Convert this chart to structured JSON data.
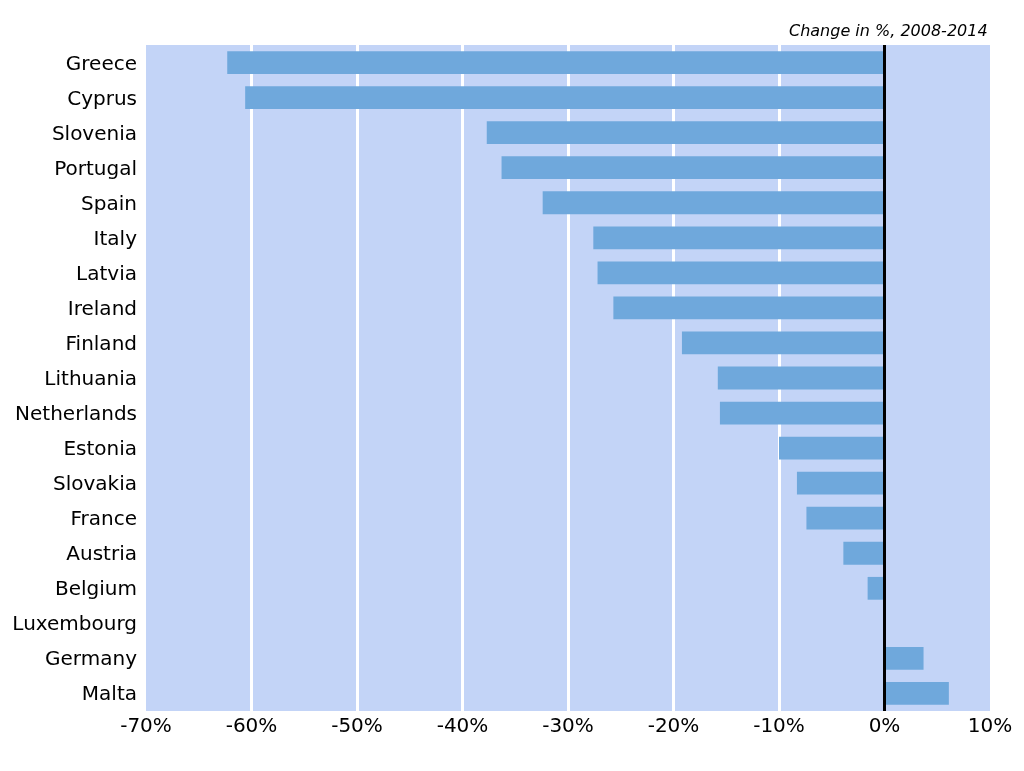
{
  "chart_data": {
    "type": "bar",
    "orientation": "horizontal",
    "annotations": [
      "Change in %, 2008-2014"
    ],
    "categories": [
      "Greece",
      "Cyprus",
      "Slovenia",
      "Portugal",
      "Spain",
      "Italy",
      "Latvia",
      "Ireland",
      "Finland",
      "Lithuania",
      "Netherlands",
      "Estonia",
      "Slovakia",
      "France",
      "Austria",
      "Belgium",
      "Luxembourg",
      "Germany",
      "Malta"
    ],
    "values": [
      -62.3,
      -60.6,
      -37.7,
      -36.3,
      -32.4,
      -27.6,
      -27.2,
      -25.7,
      -19.2,
      -15.8,
      -15.6,
      -10.0,
      -8.3,
      -7.4,
      -3.9,
      -1.6,
      null,
      3.7,
      6.1
    ],
    "color": "#6fa8dc",
    "xlim": [
      -70,
      10
    ],
    "xticks": [
      {
        "value": -70,
        "label": "-70%"
      },
      {
        "value": -60,
        "label": "-60%"
      },
      {
        "value": -50,
        "label": "-50%"
      },
      {
        "value": -40,
        "label": "-40%"
      },
      {
        "value": -30,
        "label": "-30%"
      },
      {
        "value": -20,
        "label": "-20%"
      },
      {
        "value": -10,
        "label": "-10%"
      },
      {
        "value": 0,
        "label": "0%"
      },
      {
        "value": 10,
        "label": "10%"
      }
    ],
    "ref_lines": [
      {
        "axis": "x",
        "value": 0,
        "color": "#000000"
      }
    ],
    "grid": "x"
  }
}
